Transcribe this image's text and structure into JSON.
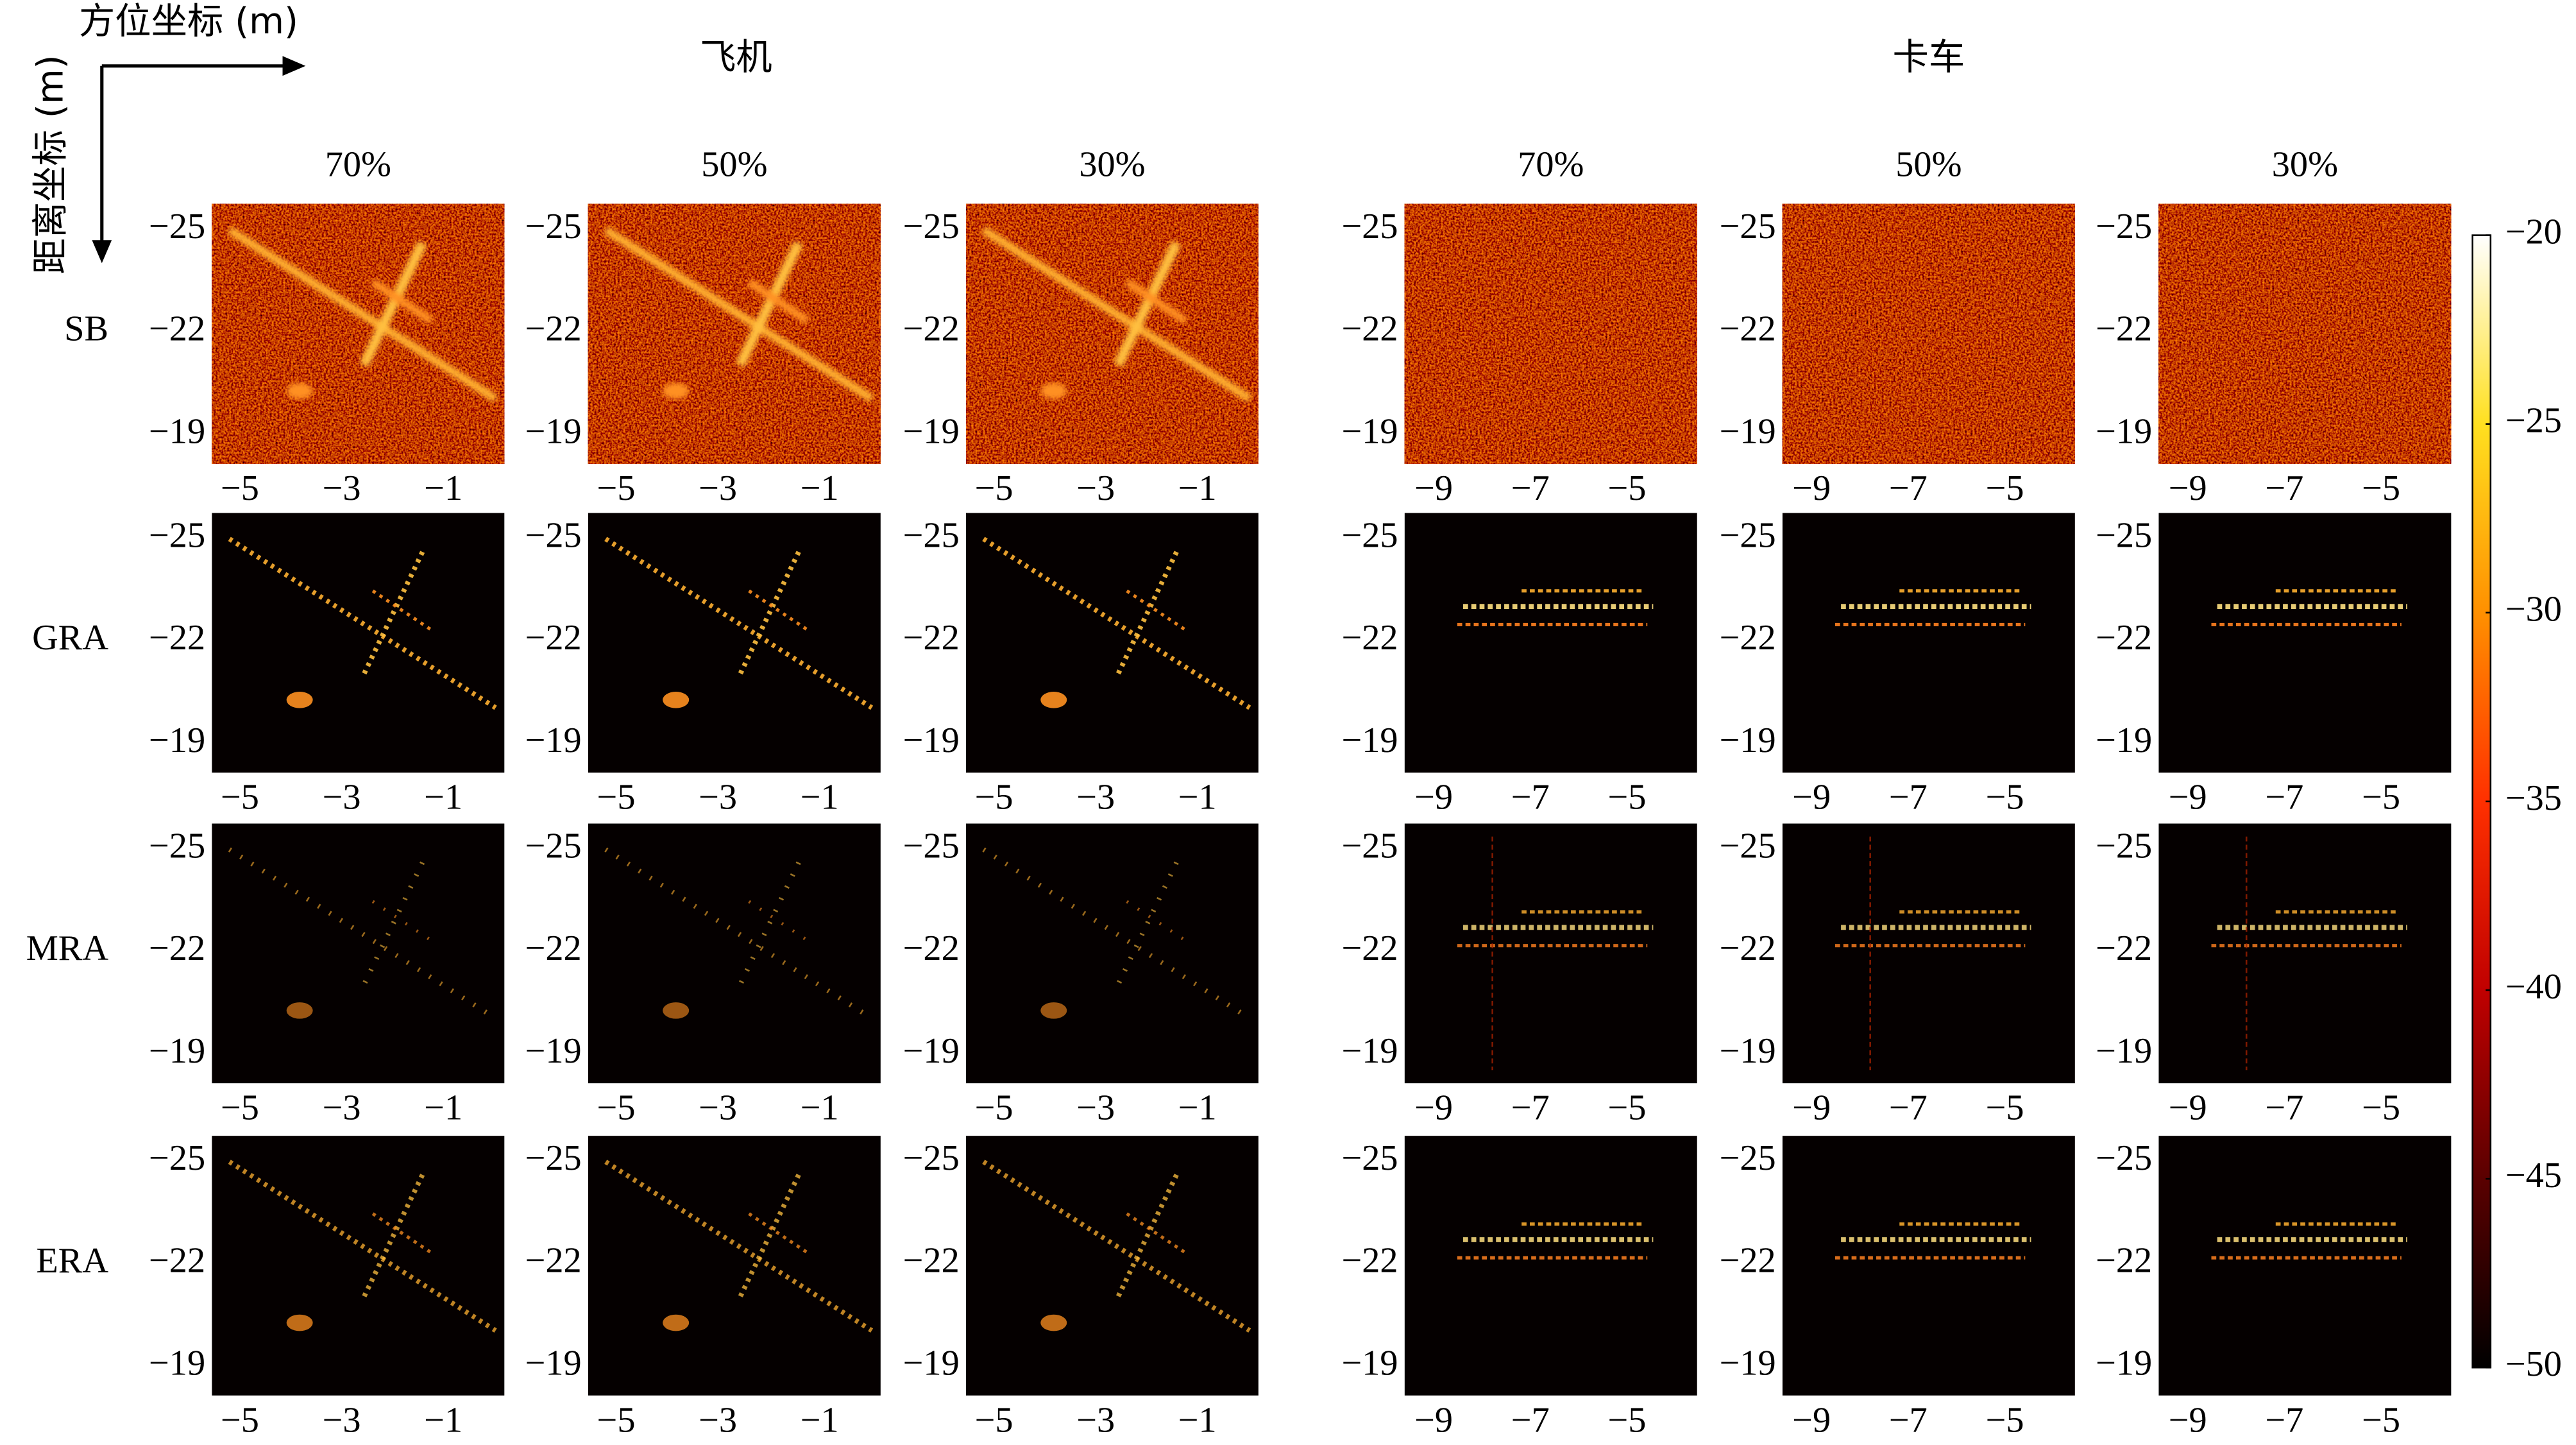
{
  "chart_data": {
    "type": "image-grid",
    "axis_labels": {
      "x": "方位坐标 (m)",
      "y": "距离坐标 (m)"
    },
    "groups": [
      {
        "title": "飞机",
        "columns": [
          "70%",
          "50%",
          "30%"
        ],
        "xlim": [
          -5.55,
          0.2
        ],
        "xticks": [
          {
            "value": -5,
            "label": "−5"
          },
          {
            "value": -3,
            "label": "−3"
          },
          {
            "value": -1,
            "label": "−1"
          }
        ]
      },
      {
        "title": "卡车",
        "columns": [
          "70%",
          "50%",
          "30%"
        ],
        "xlim": [
          -9.6,
          -3.55
        ],
        "xticks": [
          {
            "value": -9,
            "label": "−9"
          },
          {
            "value": -7,
            "label": "−7"
          },
          {
            "value": -5,
            "label": "−5"
          }
        ]
      }
    ],
    "rows": [
      "SB",
      "GRA",
      "MRA",
      "ERA"
    ],
    "ylim": [
      -25.75,
      -18.15
    ],
    "yticks": [
      {
        "value": -25,
        "label": "−25"
      },
      {
        "value": -22,
        "label": "−22"
      },
      {
        "value": -19,
        "label": "−19"
      }
    ],
    "colorbar": {
      "ylim": [
        -50,
        -20
      ],
      "colormap": [
        "#000000",
        "#5a0000",
        "#c00000",
        "#ff3000",
        "#ff9000",
        "#ffe020",
        "#ffffff"
      ],
      "yticks": [
        {
          "value": -20,
          "label": "−20"
        },
        {
          "value": -25,
          "label": "−25"
        },
        {
          "value": -30,
          "label": "−30"
        },
        {
          "value": -35,
          "label": "−35"
        },
        {
          "value": -40,
          "label": "−40"
        },
        {
          "value": -45,
          "label": "−45"
        },
        {
          "value": -50,
          "label": "−50"
        }
      ]
    }
  }
}
